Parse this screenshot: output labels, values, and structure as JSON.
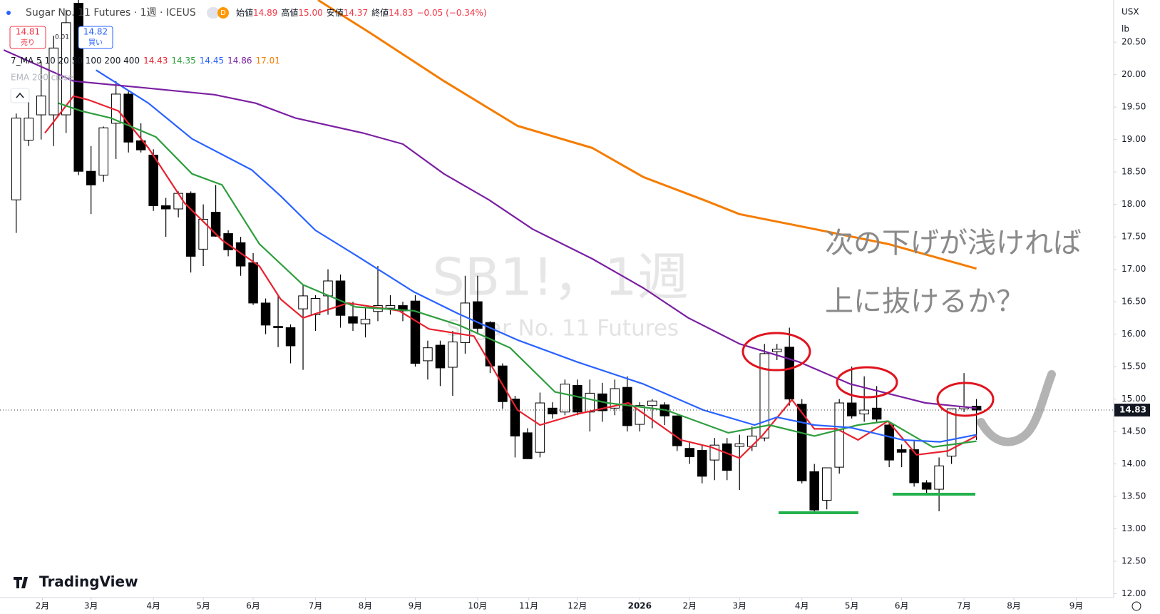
{
  "header": {
    "title": "Sugar No. 11 Futures · 1週 · ICEUS",
    "badge": "D",
    "ohlc": [
      {
        "label": "始値",
        "value": "14.89"
      },
      {
        "label": "高値",
        "value": "15.00"
      },
      {
        "label": "安値",
        "value": "14.37"
      },
      {
        "label": "終値",
        "value": "14.83"
      }
    ],
    "change": "−0.05 (−0.34%)",
    "sell": {
      "price": "14.81",
      "label": "売り"
    },
    "spread": "0.01",
    "buy": {
      "price": "14.82",
      "label": "買い"
    },
    "indicator2": "EMA 200 close",
    "currency": "USX",
    "unit": "lb",
    "branding": "TradingView"
  },
  "chart_data": {
    "type": "candlestick",
    "watermark": "SB1!，1週",
    "watermark_subtitle": "Sugar No. 11 Futures",
    "annotations": [
      "次の下げが浅ければ",
      "上に抜けるか？"
    ],
    "legend": {
      "label": "7_MA 5 10 20 50 100 200 400",
      "values": [
        14.43,
        14.35,
        14.45,
        14.86,
        17.01
      ]
    },
    "x": [
      0,
      1,
      2,
      3,
      4,
      5,
      6,
      7,
      8,
      9,
      10,
      11,
      12,
      13,
      14,
      15,
      16,
      17,
      18,
      19,
      20,
      21,
      22,
      23,
      24,
      25,
      26,
      27,
      28,
      29,
      30,
      31,
      32,
      33,
      34,
      35,
      36,
      37,
      38,
      39,
      40,
      41,
      42,
      43,
      44,
      45,
      46,
      47,
      48,
      49,
      50,
      51,
      52,
      53,
      54,
      55,
      56,
      57,
      58,
      59,
      60,
      61,
      62,
      63,
      64,
      65,
      66,
      67,
      68,
      69,
      70,
      71,
      72,
      73,
      74,
      75,
      76,
      77
    ],
    "open": [
      18.07,
      18.99,
      19.38,
      19.38,
      19.38,
      21.1,
      18.51,
      18.45,
      19.25,
      19.7,
      18.98,
      18.76,
      17.98,
      17.93,
      18.17,
      17.31,
      17.88,
      17.55,
      17.41,
      17.1,
      16.48,
      16.12,
      16.1,
      16.39,
      16.3,
      16.59,
      16.82,
      16.27,
      16.16,
      16.35,
      16.4,
      16.44,
      16.51,
      15.59,
      15.83,
      15.49,
      15.87,
      16.5,
      16.18,
      15.51,
      15.0,
      14.48,
      14.18,
      14.86,
      14.8,
      15.21,
      14.8,
      15.08,
      14.86,
      15.18,
      14.61,
      14.9,
      14.91,
      14.74,
      14.24,
      14.21,
      14.06,
      14.31,
      14.27,
      14.27,
      14.4,
      15.73,
      15.8,
      14.92,
      13.88,
      13.44,
      13.95,
      14.94,
      14.77,
      14.86,
      14.6,
      14.22,
      14.22,
      13.71,
      13.61,
      14.12,
      14.85,
      14.89
    ],
    "high": [
      19.4,
      19.7,
      20.2,
      20.6,
      21.0,
      21.15,
      18.9,
      19.2,
      19.9,
      19.75,
      19.25,
      18.85,
      18.1,
      18.2,
      18.2,
      18.0,
      18.3,
      17.6,
      17.5,
      17.25,
      16.55,
      16.6,
      16.15,
      16.75,
      16.6,
      17.0,
      16.92,
      16.5,
      16.4,
      17.05,
      16.6,
      16.5,
      16.6,
      15.9,
      15.9,
      16.05,
      16.9,
      16.9,
      16.2,
      15.55,
      15.05,
      14.55,
      15.1,
      14.95,
      15.3,
      15.3,
      15.3,
      15.25,
      15.3,
      15.35,
      14.95,
      15.0,
      14.95,
      14.75,
      14.35,
      14.3,
      14.4,
      14.4,
      14.45,
      14.58,
      15.85,
      15.85,
      16.1,
      15.0,
      14.0,
      13.9,
      15.0,
      15.5,
      15.35,
      15.2,
      14.65,
      14.3,
      14.35,
      13.75,
      14.1,
      14.85,
      15.4,
      15.0
    ],
    "low": [
      17.56,
      18.9,
      19.0,
      18.9,
      19.1,
      18.45,
      17.85,
      18.35,
      18.7,
      18.8,
      18.8,
      17.9,
      17.5,
      17.8,
      16.95,
      17.05,
      17.5,
      17.2,
      16.9,
      16.45,
      16.0,
      15.8,
      15.55,
      15.45,
      16.05,
      16.3,
      16.1,
      16.05,
      15.95,
      16.2,
      16.3,
      16.2,
      15.5,
      15.3,
      15.2,
      15.05,
      15.7,
      16.0,
      15.4,
      14.85,
      14.1,
      14.08,
      14.1,
      14.7,
      14.75,
      14.75,
      14.5,
      14.65,
      14.75,
      14.5,
      14.5,
      14.55,
      14.6,
      14.2,
      14.0,
      13.7,
      13.75,
      13.75,
      13.6,
      14.2,
      14.35,
      15.6,
      14.9,
      13.7,
      13.25,
      13.3,
      13.85,
      14.7,
      14.65,
      14.65,
      13.95,
      13.95,
      13.65,
      13.55,
      13.27,
      14.0,
      14.8,
      14.37
    ],
    "close": [
      19.33,
      19.33,
      19.67,
      20.41,
      20.8,
      18.51,
      18.3,
      19.18,
      19.7,
      18.96,
      18.84,
      17.98,
      17.93,
      18.17,
      17.2,
      17.77,
      17.51,
      17.3,
      17.05,
      16.48,
      16.14,
      16.1,
      15.82,
      16.59,
      16.55,
      16.82,
      16.29,
      16.17,
      16.23,
      16.44,
      16.44,
      16.36,
      15.55,
      15.79,
      15.48,
      15.88,
      16.48,
      16.09,
      15.51,
      14.96,
      14.43,
      14.08,
      14.94,
      14.77,
      15.23,
      14.8,
      15.09,
      14.82,
      15.16,
      14.59,
      14.9,
      14.97,
      14.74,
      14.28,
      14.11,
      13.81,
      14.29,
      13.9,
      14.31,
      14.43,
      15.7,
      15.77,
      15.0,
      13.74,
      13.29,
      13.94,
      14.94,
      14.74,
      14.83,
      14.69,
      14.06,
      14.18,
      13.71,
      13.61,
      13.97,
      14.85,
      14.88,
      14.83
    ],
    "up_color": "#ffffff",
    "down_color": "#000000",
    "lines": [
      {
        "color": "#e8222f",
        "x": [
          2.3,
          4.6,
          5.8,
          8.2,
          10.6,
          13.5,
          16.5,
          19.5,
          21.2,
          23.0,
          26.6,
          30.7,
          33.1,
          36.7,
          40.2,
          42.0,
          45.0,
          49.1,
          53.3,
          55.7,
          58.0,
          59.8,
          62.2,
          64.0,
          65.8,
          67.5,
          69.9,
          72.2,
          74.7,
          77.0
        ],
        "values": [
          19.1,
          19.67,
          19.61,
          19.44,
          18.87,
          18.02,
          17.45,
          17.05,
          16.54,
          16.25,
          16.48,
          16.36,
          16.08,
          15.97,
          14.83,
          14.6,
          14.77,
          14.94,
          14.37,
          14.26,
          14.09,
          14.43,
          14.99,
          14.54,
          14.54,
          14.37,
          14.66,
          14.14,
          14.2,
          14.43
        ]
      },
      {
        "color": "#2e9e3e",
        "x": [
          3.4,
          5.2,
          7.6,
          11.2,
          14.1,
          16.5,
          19.5,
          23.0,
          27.2,
          31.9,
          35.5,
          39.6,
          43.2,
          47.4,
          52.1,
          57.1,
          60.4,
          64.0,
          67.5,
          69.9,
          73.5,
          77.0
        ],
        "values": [
          19.56,
          19.44,
          19.33,
          19.04,
          18.47,
          18.3,
          17.39,
          16.76,
          16.42,
          16.36,
          16.14,
          15.79,
          15.11,
          14.94,
          14.83,
          14.48,
          14.6,
          14.43,
          14.6,
          14.66,
          14.26,
          14.35
        ]
      },
      {
        "color": "#2962ff",
        "x": [
          6.4,
          10.6,
          14.1,
          18.9,
          21.2,
          24.0,
          27.2,
          31.9,
          35.5,
          40.2,
          45.0,
          50.3,
          55.1,
          59.2,
          61.0,
          64.0,
          66.9,
          71.1,
          74.1,
          77.0
        ],
        "values": [
          20.07,
          19.56,
          19.01,
          18.53,
          18.13,
          17.6,
          17.22,
          16.65,
          16.31,
          15.91,
          15.57,
          15.23,
          14.83,
          14.6,
          14.72,
          14.6,
          14.56,
          14.37,
          14.34,
          14.45
        ]
      },
      {
        "color": "#7b1fa2",
        "x": [
          -1.0,
          4.6,
          10.6,
          15.9,
          19.2,
          22.4,
          27.8,
          31.0,
          34.3,
          37.9,
          41.4,
          46.2,
          50.3,
          53.9,
          58.0,
          62.8,
          66.9,
          72.9,
          77.0
        ],
        "values": [
          20.38,
          19.9,
          19.79,
          19.69,
          19.56,
          19.33,
          19.1,
          18.93,
          18.47,
          18.07,
          17.62,
          17.16,
          16.71,
          16.25,
          15.85,
          15.57,
          15.23,
          14.94,
          14.86
        ]
      },
      {
        "color": "#f57c00",
        "x": [
          24.2,
          28.4,
          34.3,
          40.2,
          46.2,
          50.3,
          55.1,
          58.0,
          64.0,
          69.9,
          77.0
        ],
        "values": [
          21.15,
          20.64,
          19.9,
          19.21,
          18.87,
          18.42,
          18.07,
          17.85,
          17.62,
          17.39,
          17.01
        ]
      }
    ],
    "price_line": 14.83,
    "xlim": [
      -1.3,
      88.0
    ],
    "xticks": [
      {
        "value": 2.1,
        "label": "2月"
      },
      {
        "value": 6.0,
        "label": "3月"
      },
      {
        "value": 11.0,
        "label": "4月"
      },
      {
        "value": 15.0,
        "label": "5月"
      },
      {
        "value": 19.0,
        "label": "6月"
      },
      {
        "value": 24.0,
        "label": "7月"
      },
      {
        "value": 28.0,
        "label": "8月"
      },
      {
        "value": 32.0,
        "label": "9月"
      },
      {
        "value": 37.0,
        "label": "10月"
      },
      {
        "value": 41.1,
        "label": "11月"
      },
      {
        "value": 45.0,
        "label": "12月"
      },
      {
        "value": 50.0,
        "label": "2026"
      },
      {
        "value": 54.0,
        "label": "2月"
      },
      {
        "value": 58.0,
        "label": "3月"
      },
      {
        "value": 63.0,
        "label": "4月"
      },
      {
        "value": 67.0,
        "label": "5月"
      },
      {
        "value": 71.0,
        "label": "6月"
      },
      {
        "value": 76.0,
        "label": "7月"
      },
      {
        "value": 80.0,
        "label": "8月"
      },
      {
        "value": 85.0,
        "label": "9月"
      }
    ],
    "ylim": [
      11.94,
      21.15
    ],
    "yticks": [
      {
        "value": 12,
        "label": "12.00"
      },
      {
        "value": 12.5,
        "label": "12.50"
      },
      {
        "value": 13,
        "label": "13.00"
      },
      {
        "value": 13.5,
        "label": "13.50"
      },
      {
        "value": 14,
        "label": "14.00"
      },
      {
        "value": 14.5,
        "label": "14.50"
      },
      {
        "value": 15,
        "label": "15.00"
      },
      {
        "value": 15.5,
        "label": "15.50"
      },
      {
        "value": 16,
        "label": "16.00"
      },
      {
        "value": 16.5,
        "label": "16.50"
      },
      {
        "value": 17,
        "label": "17.00"
      },
      {
        "value": 17.5,
        "label": "17.50"
      },
      {
        "value": 18,
        "label": "18.00"
      },
      {
        "value": 18.5,
        "label": "18.50"
      },
      {
        "value": 19,
        "label": "19.00"
      },
      {
        "value": 19.5,
        "label": "19.50"
      },
      {
        "value": 20,
        "label": "20.00"
      },
      {
        "value": 20.5,
        "label": "20.50"
      }
    ],
    "grid": false
  }
}
